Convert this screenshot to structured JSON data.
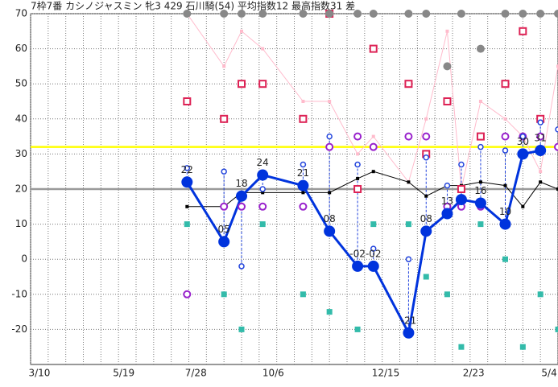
{
  "chart_data": {
    "type": "line",
    "title": "7枠7番 カシノジャスミン 牝3 429 石川騎(54) 平均指数12 最高指数31 差",
    "x": [
      8.9,
      11.0,
      12.0,
      13.2,
      15.5,
      17.0,
      18.6,
      19.5,
      21.5,
      22.5,
      23.7,
      24.5,
      25.6,
      27.0,
      28.0,
      29.0,
      30.0
    ],
    "xlim": [
      0,
      30
    ],
    "xticks": [
      {
        "value": 0.5,
        "label": "3/10"
      },
      {
        "value": 5.3,
        "label": "5/19"
      },
      {
        "value": 9.4,
        "label": "7/28"
      },
      {
        "value": 13.8,
        "label": "10/6"
      },
      {
        "value": 20.2,
        "label": "12/15"
      },
      {
        "value": 25.2,
        "label": "2/23"
      },
      {
        "value": 29.5,
        "label": "5/4"
      }
    ],
    "ylim": [
      -30,
      70
    ],
    "yticks": [
      70,
      60,
      50,
      40,
      30,
      20,
      10,
      0,
      -10,
      -20
    ],
    "grid": true,
    "reference_lines": [
      {
        "value": 20,
        "color": "#999999"
      },
      {
        "value": 32,
        "color": "#ffff00"
      }
    ],
    "series": [
      {
        "color": "#ffbbcc",
        "marker": "dot",
        "line": 1,
        "values": [
          70,
          55,
          65,
          60,
          45,
          45,
          30,
          35,
          22,
          40,
          65,
          20,
          45,
          40,
          35,
          25,
          55
        ]
      },
      {
        "color": "#000000",
        "marker": "dot",
        "line": 1,
        "values": [
          15,
          15,
          19,
          19,
          19,
          19,
          23,
          25,
          22,
          18,
          21,
          21,
          22,
          21,
          15,
          22,
          20
        ]
      },
      {
        "color": "#dd2255",
        "marker": "square-open",
        "line": 0,
        "values": [
          45,
          40,
          50,
          50,
          40,
          70,
          20,
          60,
          50,
          30,
          45,
          20,
          35,
          50,
          65,
          40,
          null
        ]
      },
      {
        "color": "#9922cc",
        "marker": "circle-open",
        "line": 0,
        "values": [
          -10,
          15,
          15,
          15,
          15,
          32,
          35,
          32,
          35,
          35,
          15,
          15,
          15,
          35,
          35,
          35,
          32
        ]
      },
      {
        "color": "#33bbaa",
        "marker": "square",
        "line": 0,
        "values": [
          10,
          -10,
          -20,
          10,
          -10,
          -15,
          -20,
          10,
          10,
          -5,
          -10,
          -25,
          10,
          0,
          -25,
          -10,
          -20
        ]
      },
      {
        "color": "#888888",
        "marker": "circle",
        "line": 0,
        "values": [
          70,
          70,
          70,
          70,
          70,
          70,
          70,
          70,
          70,
          70,
          55,
          70,
          60,
          70,
          70,
          70,
          70
        ]
      },
      {
        "color": "#2244dd",
        "marker": "circle-small",
        "line": 0,
        "drop_to": 7,
        "values": [
          26,
          25,
          -2,
          20,
          27,
          35,
          27,
          3,
          0,
          29,
          21,
          27,
          32,
          31,
          35,
          39,
          37
        ]
      },
      {
        "color": "#0033dd",
        "marker": "circle",
        "line": 3,
        "values": [
          22,
          5,
          18,
          24,
          21,
          8,
          -2,
          -2,
          -21,
          8,
          13,
          17,
          16,
          10,
          30,
          31,
          null
        ],
        "value_labels": [
          "22",
          "05",
          "18",
          "24",
          "21",
          "08",
          "-02",
          "-02",
          "-21",
          "08",
          "13",
          null,
          "16",
          "10",
          "30",
          "31",
          null
        ]
      }
    ]
  }
}
